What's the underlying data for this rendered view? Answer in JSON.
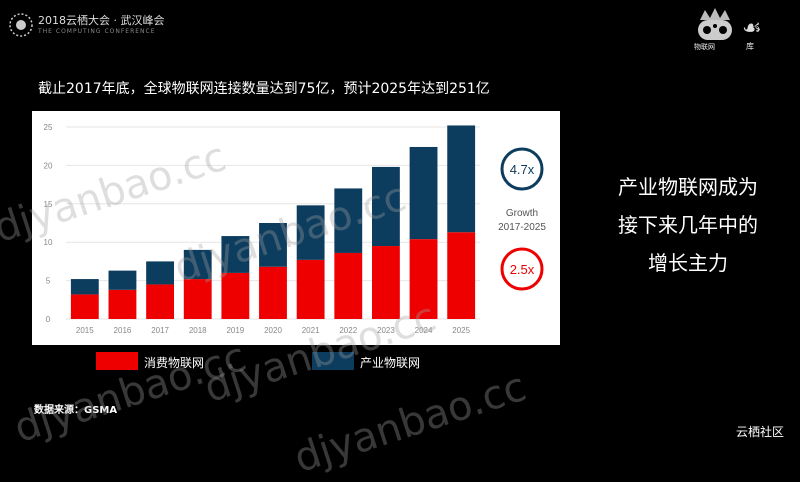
{
  "header": {
    "event_title": "2018云栖大会 · 武汉峰会",
    "event_subtitle": "THE COMPUTING CONFERENCE",
    "iot_logo_label": "物联网",
    "iot_logo_suffix": "库"
  },
  "headline": "截止2017年底，全球物联网连接数量达到75亿，预计2025年达到251亿",
  "chart_data": {
    "type": "bar",
    "stacked": true,
    "categories": [
      "2015",
      "2016",
      "2017",
      "2018",
      "2019",
      "2020",
      "2021",
      "2022",
      "2023",
      "2024",
      "2025"
    ],
    "series": [
      {
        "name": "消费物联网",
        "color": "#ee0000",
        "values": [
          3.2,
          3.8,
          4.5,
          5.2,
          6.0,
          6.8,
          7.7,
          8.6,
          9.5,
          10.4,
          11.3
        ]
      },
      {
        "name": "产业物联网",
        "color": "#0d3d5e",
        "values": [
          2.0,
          2.5,
          3.0,
          3.8,
          4.8,
          5.7,
          7.1,
          8.4,
          10.3,
          12.0,
          13.9
        ]
      }
    ],
    "ylim": [
      0,
      25
    ],
    "yticks": [
      0,
      5,
      10,
      15,
      20,
      25
    ],
    "grid": true,
    "annotations": {
      "industrial_growth": "4.7x",
      "growth_label_1": "Growth",
      "growth_label_2": "2017-2025",
      "consumer_growth": "2.5x"
    }
  },
  "legend": {
    "consumer": "消费物联网",
    "industrial": "产业物联网"
  },
  "source": "数据来源：GSMA",
  "side_text": [
    "产业物联网成为",
    "接下来几年中的",
    "增长主力"
  ],
  "community_logo": "云栖社区",
  "watermarks": [
    "djyanbao.cc",
    "djyanbao.cc",
    "djyanbao.cc",
    "djyanbao.cc",
    "djyanbao.cc"
  ],
  "colors": {
    "consumer": "#ee0000",
    "industrial": "#0d3d5e",
    "background": "#000000"
  }
}
